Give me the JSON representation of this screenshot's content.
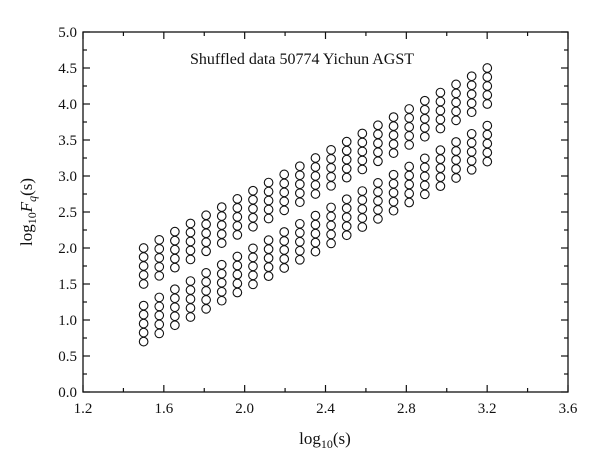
{
  "chart_data": {
    "type": "scatter",
    "title": "Shuffled data 50774 Yichun AGST",
    "xlabel": {
      "pre": "log",
      "sub": "10",
      "post": "(s)"
    },
    "ylabel": {
      "pre": "log",
      "sub": "10",
      "var": "F",
      "varsub": "q",
      "post": "(s)"
    },
    "xlim": [
      1.2,
      3.6
    ],
    "ylim": [
      0.0,
      5.0
    ],
    "xticks": [
      "1.2",
      "1.6",
      "2.0",
      "2.4",
      "2.8",
      "3.2",
      "3.6"
    ],
    "yticks": [
      "0.0",
      "0.5",
      "1.0",
      "1.5",
      "2.0",
      "2.5",
      "3.0",
      "3.5",
      "4.0",
      "4.5",
      "5.0"
    ],
    "x_start": 1.5,
    "x_step": 0.0773,
    "n_columns": 23,
    "clusters": [
      {
        "y_start": 1.5,
        "slope": 1.47,
        "spacing": 0.125,
        "rows": 5
      },
      {
        "y_start": 0.7,
        "slope": 1.47,
        "spacing": 0.125,
        "rows": 5
      }
    ],
    "grid": false,
    "legend": "none"
  }
}
